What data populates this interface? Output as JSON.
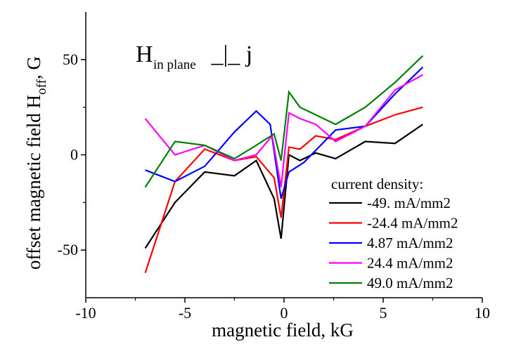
{
  "chart_data": {
    "type": "line",
    "title": "",
    "xlabel": "magnetic field, kG",
    "ylabel_main": "offset magnetic field H",
    "ylabel_sub": "off",
    "ylabel_tail": ", G",
    "xlim": [
      -10,
      10
    ],
    "ylim": [
      -75,
      75
    ],
    "xticks": [
      -10,
      -5,
      0,
      5,
      10
    ],
    "yticks": [
      -50,
      0,
      50
    ],
    "x_tick_labels": [
      "-10",
      "-5",
      "0",
      "5",
      "10"
    ],
    "y_tick_labels": [
      "-50",
      "0",
      "50"
    ],
    "grid": false,
    "legend_title": "current density:",
    "legend_position": "bottom-right",
    "annotation": {
      "main": "H",
      "sub": "in plane",
      "tail": " _|_ j"
    },
    "series": [
      {
        "name": "-49. mA/mm2",
        "color": "#000000",
        "x": [
          -7.0,
          -5.5,
          -4.0,
          -2.5,
          -1.4,
          -0.5,
          -0.15,
          0.25,
          0.8,
          1.6,
          2.6,
          4.1,
          5.6,
          7.0
        ],
        "y": [
          -49,
          -25,
          -9,
          -11,
          -3,
          -23,
          -44,
          0,
          -3,
          1,
          -2,
          7,
          6,
          16
        ]
      },
      {
        "name": "-24.4 mA/mm2",
        "color": "#ff0000",
        "x": [
          -7.0,
          -5.5,
          -4.0,
          -2.5,
          -1.4,
          -0.5,
          -0.15,
          0.25,
          0.8,
          1.6,
          2.6,
          4.1,
          5.6,
          7.0
        ],
        "y": [
          -62,
          -14,
          3,
          -3,
          -1,
          -12,
          -33,
          4,
          3,
          10,
          8,
          15,
          21,
          25
        ]
      },
      {
        "name": "4.87 mA/mm2",
        "color": "#0000ff",
        "x": [
          -7.0,
          -5.5,
          -4.0,
          -2.5,
          -1.4,
          -0.7,
          -0.15,
          0.25,
          1.0,
          2.6,
          4.1,
          5.6,
          7.0
        ],
        "y": [
          -8,
          -14,
          -6,
          12,
          23,
          16,
          -23,
          -9,
          -4,
          13,
          15,
          32,
          46
        ]
      },
      {
        "name": "24.4 mA/mm2",
        "color": "#ff00ff",
        "x": [
          -7.0,
          -5.5,
          -4.0,
          -2.5,
          -1.4,
          -0.6,
          -0.15,
          0.25,
          0.8,
          1.6,
          2.6,
          4.1,
          5.6,
          7.0
        ],
        "y": [
          19,
          0,
          5,
          -3,
          0,
          10,
          -17,
          22,
          19,
          16,
          7,
          15,
          34,
          42
        ]
      },
      {
        "name": "49.0 mA/mm2",
        "color": "#008000",
        "x": [
          -7.0,
          -5.5,
          -4.0,
          -2.5,
          -1.4,
          -0.5,
          -0.15,
          0.25,
          0.8,
          1.6,
          2.6,
          4.1,
          5.6,
          7.0
        ],
        "y": [
          -17,
          7,
          5,
          -2,
          5,
          11,
          -3,
          33,
          25,
          21,
          16,
          25,
          38,
          52
        ]
      }
    ]
  }
}
